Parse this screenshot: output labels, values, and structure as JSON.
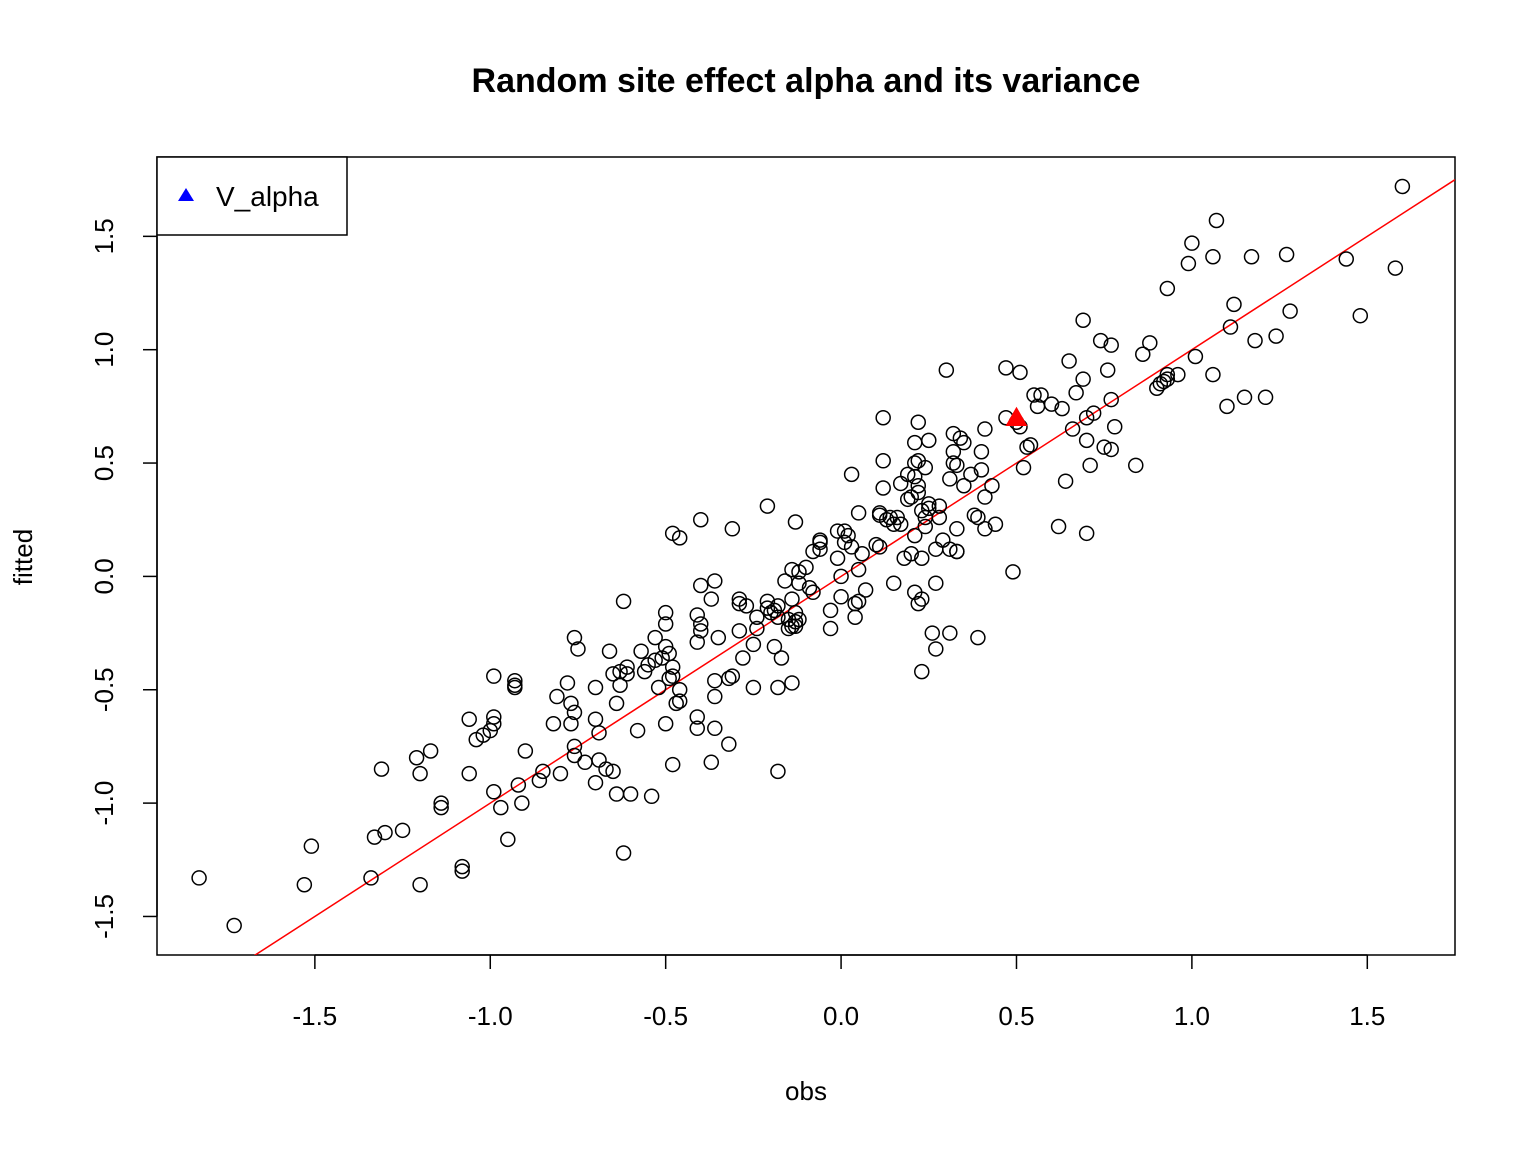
{
  "chart_data": {
    "type": "scatter",
    "title": "Random site effect alpha and its variance",
    "xlabel": "obs",
    "ylabel": "fitted",
    "xlim": [
      -1.95,
      1.75
    ],
    "ylim": [
      -1.67,
      1.85
    ],
    "xticks": [
      -1.5,
      -1.0,
      -0.5,
      0.0,
      0.5,
      1.0,
      1.5
    ],
    "xtick_labels": [
      "-1.5",
      "-1.0",
      "-0.5",
      "0.0",
      "0.5",
      "1.0",
      "1.5"
    ],
    "yticks": [
      -1.5,
      -1.0,
      -0.5,
      0.0,
      0.5,
      1.0,
      1.5
    ],
    "ytick_labels": [
      "-1.5",
      "-1.0",
      "-0.5",
      "0.0",
      "0.5",
      "1.0",
      "1.5"
    ],
    "grid": false,
    "reference_line": {
      "type": "identity",
      "slope": 1,
      "intercept": 0,
      "color": "#ff0000"
    },
    "legend": {
      "position": "top-left",
      "entries": [
        {
          "label": "V_alpha",
          "marker": "triangle",
          "color": "#0000ff"
        }
      ]
    },
    "highlight_point": {
      "x": 0.5,
      "y": 0.7,
      "marker": "triangle",
      "color": "#ff0000"
    },
    "points_color": "#000000",
    "points": [
      [
        -1.83,
        -1.33
      ],
      [
        -1.73,
        -1.54
      ],
      [
        -1.53,
        -1.36
      ],
      [
        -1.51,
        -1.19
      ],
      [
        -1.34,
        -1.33
      ],
      [
        -1.33,
        -1.15
      ],
      [
        -1.31,
        -0.85
      ],
      [
        -1.3,
        -1.13
      ],
      [
        -1.25,
        -1.12
      ],
      [
        -1.21,
        -0.8
      ],
      [
        -1.2,
        -0.87
      ],
      [
        -1.2,
        -1.36
      ],
      [
        -1.17,
        -0.77
      ],
      [
        -1.14,
        -1.0
      ],
      [
        -1.14,
        -1.02
      ],
      [
        -1.08,
        -1.28
      ],
      [
        -1.08,
        -1.3
      ],
      [
        -1.06,
        -0.63
      ],
      [
        -1.06,
        -0.87
      ],
      [
        -1.04,
        -0.72
      ],
      [
        -1.02,
        -0.7
      ],
      [
        -1.0,
        -0.68
      ],
      [
        -0.99,
        -0.65
      ],
      [
        -0.99,
        -0.62
      ],
      [
        -0.99,
        -0.95
      ],
      [
        -0.99,
        -0.44
      ],
      [
        -0.97,
        -1.02
      ],
      [
        -0.95,
        -1.16
      ],
      [
        -0.93,
        -0.49
      ],
      [
        -0.93,
        -0.48
      ],
      [
        -0.93,
        -0.46
      ],
      [
        -0.92,
        -0.92
      ],
      [
        -0.91,
        -1.0
      ],
      [
        -0.9,
        -0.77
      ],
      [
        -0.86,
        -0.9
      ],
      [
        -0.85,
        -0.86
      ],
      [
        -0.82,
        -0.65
      ],
      [
        -0.81,
        -0.53
      ],
      [
        -0.8,
        -0.87
      ],
      [
        -0.78,
        -0.47
      ],
      [
        -0.77,
        -0.56
      ],
      [
        -0.77,
        -0.65
      ],
      [
        -0.76,
        -0.6
      ],
      [
        -0.76,
        -0.27
      ],
      [
        -0.76,
        -0.75
      ],
      [
        -0.76,
        -0.79
      ],
      [
        -0.75,
        -0.32
      ],
      [
        -0.73,
        -0.82
      ],
      [
        -0.7,
        -0.49
      ],
      [
        -0.7,
        -0.63
      ],
      [
        -0.7,
        -0.91
      ],
      [
        -0.69,
        -0.69
      ],
      [
        -0.69,
        -0.81
      ],
      [
        -0.67,
        -0.85
      ],
      [
        -0.66,
        -0.33
      ],
      [
        -0.65,
        -0.86
      ],
      [
        -0.65,
        -0.43
      ],
      [
        -0.64,
        -0.56
      ],
      [
        -0.64,
        -0.96
      ],
      [
        -0.63,
        -0.42
      ],
      [
        -0.63,
        -0.48
      ],
      [
        -0.62,
        -1.22
      ],
      [
        -0.62,
        -0.11
      ],
      [
        -0.61,
        -0.4
      ],
      [
        -0.61,
        -0.43
      ],
      [
        -0.6,
        -0.96
      ],
      [
        -0.58,
        -0.68
      ],
      [
        -0.57,
        -0.33
      ],
      [
        -0.56,
        -0.42
      ],
      [
        -0.55,
        -0.39
      ],
      [
        -0.54,
        -0.97
      ],
      [
        -0.53,
        -0.27
      ],
      [
        -0.53,
        -0.37
      ],
      [
        -0.52,
        -0.49
      ],
      [
        -0.51,
        -0.36
      ],
      [
        -0.5,
        -0.65
      ],
      [
        -0.5,
        -0.16
      ],
      [
        -0.5,
        -0.21
      ],
      [
        -0.5,
        -0.31
      ],
      [
        -0.49,
        -0.34
      ],
      [
        -0.49,
        -0.45
      ],
      [
        -0.48,
        -0.44
      ],
      [
        -0.48,
        -0.4
      ],
      [
        -0.48,
        -0.83
      ],
      [
        -0.48,
        0.19
      ],
      [
        -0.47,
        -0.56
      ],
      [
        -0.46,
        -0.5
      ],
      [
        -0.46,
        -0.55
      ],
      [
        -0.46,
        0.17
      ],
      [
        -0.41,
        -0.29
      ],
      [
        -0.41,
        -0.62
      ],
      [
        -0.41,
        -0.17
      ],
      [
        -0.41,
        -0.67
      ],
      [
        -0.4,
        0.25
      ],
      [
        -0.4,
        -0.04
      ],
      [
        -0.4,
        -0.21
      ],
      [
        -0.4,
        -0.24
      ],
      [
        -0.37,
        -0.82
      ],
      [
        -0.37,
        -0.1
      ],
      [
        -0.36,
        -0.46
      ],
      [
        -0.36,
        -0.53
      ],
      [
        -0.36,
        -0.67
      ],
      [
        -0.36,
        -0.02
      ],
      [
        -0.35,
        -0.27
      ],
      [
        -0.32,
        -0.74
      ],
      [
        -0.32,
        -0.45
      ],
      [
        -0.31,
        0.21
      ],
      [
        -0.31,
        -0.44
      ],
      [
        -0.29,
        -0.1
      ],
      [
        -0.29,
        -0.12
      ],
      [
        -0.29,
        -0.24
      ],
      [
        -0.28,
        -0.36
      ],
      [
        -0.27,
        -0.13
      ],
      [
        -0.25,
        -0.3
      ],
      [
        -0.25,
        -0.49
      ],
      [
        -0.24,
        -0.18
      ],
      [
        -0.24,
        -0.23
      ],
      [
        -0.21,
        -0.11
      ],
      [
        -0.21,
        0.31
      ],
      [
        -0.21,
        -0.14
      ],
      [
        -0.2,
        -0.16
      ],
      [
        -0.19,
        -0.15
      ],
      [
        -0.19,
        -0.31
      ],
      [
        -0.18,
        -0.86
      ],
      [
        -0.18,
        -0.49
      ],
      [
        -0.18,
        -0.13
      ],
      [
        -0.18,
        -0.18
      ],
      [
        -0.17,
        -0.36
      ],
      [
        -0.16,
        -0.02
      ],
      [
        -0.15,
        -0.23
      ],
      [
        -0.15,
        -0.19
      ],
      [
        -0.14,
        0.03
      ],
      [
        -0.14,
        -0.22
      ],
      [
        -0.14,
        -0.1
      ],
      [
        -0.14,
        -0.47
      ],
      [
        -0.13,
        -0.16
      ],
      [
        -0.13,
        -0.22
      ],
      [
        -0.13,
        0.24
      ],
      [
        -0.13,
        -0.2
      ],
      [
        -0.12,
        -0.19
      ],
      [
        -0.12,
        0.02
      ],
      [
        -0.12,
        -0.03
      ],
      [
        -0.1,
        0.04
      ],
      [
        -0.09,
        -0.05
      ],
      [
        -0.08,
        0.11
      ],
      [
        -0.08,
        -0.07
      ],
      [
        -0.06,
        0.15
      ],
      [
        -0.06,
        0.16
      ],
      [
        -0.06,
        0.12
      ],
      [
        -0.03,
        -0.23
      ],
      [
        -0.03,
        -0.15
      ],
      [
        -0.01,
        0.2
      ],
      [
        -0.01,
        0.08
      ],
      [
        0.0,
        -0.09
      ],
      [
        0.0,
        0.0
      ],
      [
        0.01,
        0.2
      ],
      [
        0.01,
        0.15
      ],
      [
        0.02,
        0.18
      ],
      [
        0.03,
        0.45
      ],
      [
        0.03,
        0.13
      ],
      [
        0.04,
        -0.12
      ],
      [
        0.04,
        -0.18
      ],
      [
        0.05,
        0.28
      ],
      [
        0.05,
        -0.11
      ],
      [
        0.05,
        0.03
      ],
      [
        0.06,
        0.1
      ],
      [
        0.07,
        -0.06
      ],
      [
        0.1,
        0.14
      ],
      [
        0.11,
        0.13
      ],
      [
        0.11,
        0.28
      ],
      [
        0.11,
        0.27
      ],
      [
        0.12,
        0.51
      ],
      [
        0.12,
        0.7
      ],
      [
        0.12,
        0.39
      ],
      [
        0.13,
        0.25
      ],
      [
        0.14,
        0.26
      ],
      [
        0.15,
        0.23
      ],
      [
        0.15,
        -0.03
      ],
      [
        0.16,
        0.26
      ],
      [
        0.17,
        0.41
      ],
      [
        0.17,
        0.23
      ],
      [
        0.18,
        0.08
      ],
      [
        0.19,
        0.34
      ],
      [
        0.19,
        0.45
      ],
      [
        0.2,
        0.1
      ],
      [
        0.2,
        0.35
      ],
      [
        0.21,
        0.5
      ],
      [
        0.21,
        0.59
      ],
      [
        0.21,
        -0.07
      ],
      [
        0.21,
        0.18
      ],
      [
        0.21,
        0.44
      ],
      [
        0.22,
        -0.12
      ],
      [
        0.22,
        0.68
      ],
      [
        0.22,
        0.4
      ],
      [
        0.22,
        0.37
      ],
      [
        0.22,
        0.51
      ],
      [
        0.23,
        0.29
      ],
      [
        0.23,
        -0.1
      ],
      [
        0.23,
        0.08
      ],
      [
        0.23,
        -0.42
      ],
      [
        0.24,
        0.48
      ],
      [
        0.24,
        0.22
      ],
      [
        0.24,
        0.26
      ],
      [
        0.25,
        0.32
      ],
      [
        0.25,
        0.6
      ],
      [
        0.25,
        0.3
      ],
      [
        0.26,
        -0.25
      ],
      [
        0.27,
        -0.32
      ],
      [
        0.27,
        -0.03
      ],
      [
        0.27,
        0.12
      ],
      [
        0.28,
        0.31
      ],
      [
        0.28,
        0.26
      ],
      [
        0.29,
        0.16
      ],
      [
        0.3,
        0.91
      ],
      [
        0.31,
        -0.25
      ],
      [
        0.31,
        0.12
      ],
      [
        0.31,
        0.43
      ],
      [
        0.32,
        0.5
      ],
      [
        0.32,
        0.63
      ],
      [
        0.32,
        0.55
      ],
      [
        0.33,
        0.21
      ],
      [
        0.33,
        0.11
      ],
      [
        0.33,
        0.49
      ],
      [
        0.33,
        0.11
      ],
      [
        0.34,
        0.61
      ],
      [
        0.35,
        0.4
      ],
      [
        0.35,
        0.59
      ],
      [
        0.37,
        0.45
      ],
      [
        0.38,
        0.27
      ],
      [
        0.39,
        0.26
      ],
      [
        0.39,
        -0.27
      ],
      [
        0.4,
        0.47
      ],
      [
        0.4,
        0.55
      ],
      [
        0.41,
        0.65
      ],
      [
        0.41,
        0.21
      ],
      [
        0.41,
        0.35
      ],
      [
        0.43,
        0.4
      ],
      [
        0.44,
        0.23
      ],
      [
        0.47,
        0.92
      ],
      [
        0.47,
        0.7
      ],
      [
        0.49,
        0.02
      ],
      [
        0.5,
        0.68
      ],
      [
        0.51,
        0.9
      ],
      [
        0.51,
        0.66
      ],
      [
        0.52,
        0.48
      ],
      [
        0.53,
        0.57
      ],
      [
        0.54,
        0.58
      ],
      [
        0.55,
        0.8
      ],
      [
        0.56,
        0.75
      ],
      [
        0.57,
        0.8
      ],
      [
        0.6,
        0.76
      ],
      [
        0.62,
        0.22
      ],
      [
        0.63,
        0.74
      ],
      [
        0.64,
        0.42
      ],
      [
        0.65,
        0.95
      ],
      [
        0.66,
        0.65
      ],
      [
        0.67,
        0.81
      ],
      [
        0.69,
        0.87
      ],
      [
        0.69,
        1.13
      ],
      [
        0.7,
        0.19
      ],
      [
        0.7,
        0.6
      ],
      [
        0.7,
        0.7
      ],
      [
        0.71,
        0.49
      ],
      [
        0.72,
        0.72
      ],
      [
        0.74,
        1.04
      ],
      [
        0.75,
        0.57
      ],
      [
        0.76,
        0.91
      ],
      [
        0.77,
        0.56
      ],
      [
        0.77,
        1.02
      ],
      [
        0.77,
        0.78
      ],
      [
        0.78,
        0.66
      ],
      [
        0.84,
        0.49
      ],
      [
        0.86,
        0.98
      ],
      [
        0.88,
        1.03
      ],
      [
        0.9,
        0.83
      ],
      [
        0.91,
        0.85
      ],
      [
        0.92,
        0.86
      ],
      [
        0.93,
        0.89
      ],
      [
        0.93,
        1.27
      ],
      [
        0.93,
        0.87
      ],
      [
        0.96,
        0.89
      ],
      [
        0.99,
        1.38
      ],
      [
        1.0,
        1.47
      ],
      [
        1.01,
        0.97
      ],
      [
        1.06,
        1.41
      ],
      [
        1.06,
        0.89
      ],
      [
        1.07,
        1.57
      ],
      [
        1.1,
        0.75
      ],
      [
        1.11,
        1.1
      ],
      [
        1.12,
        1.2
      ],
      [
        1.15,
        0.79
      ],
      [
        1.17,
        1.41
      ],
      [
        1.18,
        1.04
      ],
      [
        1.21,
        0.79
      ],
      [
        1.24,
        1.06
      ],
      [
        1.27,
        1.42
      ],
      [
        1.28,
        1.17
      ],
      [
        1.44,
        1.4
      ],
      [
        1.48,
        1.15
      ],
      [
        1.58,
        1.36
      ],
      [
        1.6,
        1.72
      ]
    ]
  }
}
